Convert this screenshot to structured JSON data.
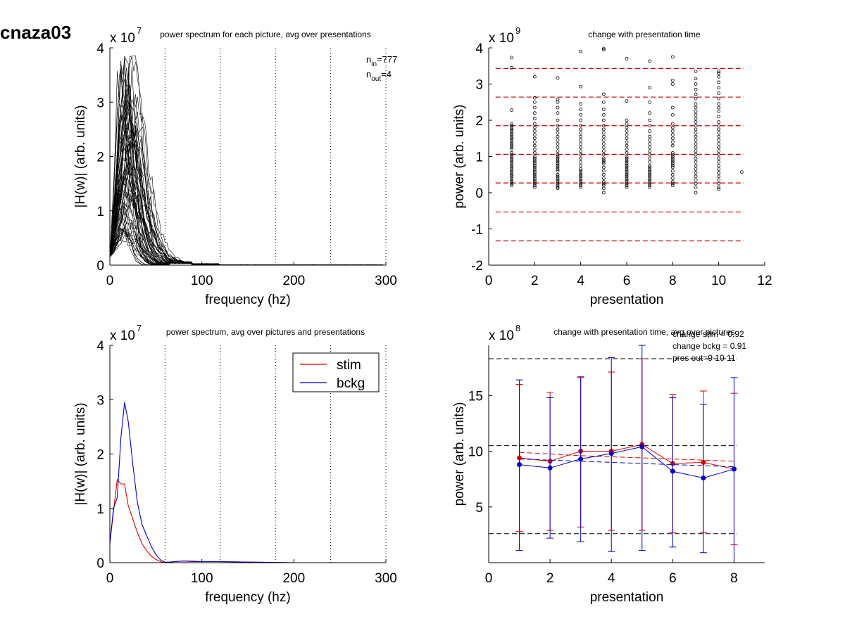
{
  "figure_title": "cnaza03",
  "chart_data": [
    {
      "type": "line",
      "title": "power spectrum for each picture, avg over presentations",
      "xlabel": "frequency (hz)",
      "ylabel": "|H(w)| (arb. units)",
      "exponent": "x 10",
      "exponent_power": "7",
      "xlim": [
        0,
        300
      ],
      "ylim": [
        0,
        4
      ],
      "xticks": [
        0,
        100,
        200,
        300
      ],
      "yticks": [
        0,
        1,
        2,
        3,
        4
      ],
      "vlines": [
        60,
        120,
        180,
        240,
        300
      ],
      "annotation_lines": [
        {
          "base": "n",
          "sub": "in",
          "rest": "=777"
        },
        {
          "base": "n",
          "sub": "out",
          "rest": "=4"
        }
      ],
      "many_traces": {
        "description_count": 60,
        "peak_freq_range": [
          8,
          25
        ],
        "peak_value_range": [
          0.5,
          3.8
        ],
        "x": [
          0,
          5,
          10,
          15,
          20,
          25,
          30,
          35,
          40,
          45,
          50,
          55,
          60,
          65,
          70,
          75,
          80,
          90,
          100,
          120,
          150,
          200,
          250,
          300
        ],
        "example_envelope_max": [
          0.5,
          2.5,
          3.5,
          3.8,
          3.4,
          2.9,
          2.4,
          1.8,
          1.0,
          0.5,
          0.2,
          0.06,
          0.02,
          0.03,
          0.05,
          0.05,
          0.04,
          0.03,
          0.03,
          0.02,
          0.02,
          0.01,
          0.01,
          0.0
        ]
      }
    },
    {
      "type": "scatter",
      "title": "change with presentation time",
      "xlabel": "presentation",
      "ylabel": "power (arb. units)",
      "exponent": "x 10",
      "exponent_power": "9",
      "xlim": [
        0,
        12
      ],
      "ylim": [
        -2,
        4
      ],
      "xticks": [
        0,
        2,
        4,
        6,
        8,
        10,
        12
      ],
      "yticks": [
        -2,
        -1,
        0,
        1,
        2,
        3,
        4
      ],
      "hlines": [
        3.43,
        2.64,
        1.85,
        1.06,
        0.27,
        -0.53,
        -1.33
      ],
      "hline_color": "#cc0000",
      "series": [
        {
          "x": 1,
          "y": [
            3.73,
            3.45,
            2.28,
            1.9,
            1.85,
            1.8,
            1.75,
            1.7,
            1.65,
            1.6,
            1.55,
            1.5,
            1.45,
            1.4,
            1.35,
            1.3,
            1.25,
            1.2,
            1.1,
            1.05,
            1.0,
            0.95,
            0.9,
            0.85,
            0.8,
            0.75,
            0.7,
            0.65,
            0.6,
            0.55,
            0.5,
            0.45,
            0.4,
            0.35,
            0.3,
            0.25,
            0.2
          ]
        },
        {
          "x": 2,
          "y": [
            3.2,
            2.62,
            2.5,
            2.35,
            2.2,
            2.05,
            1.9,
            1.8,
            1.7,
            1.6,
            1.5,
            1.4,
            1.3,
            1.2,
            1.1,
            1.0,
            0.95,
            0.9,
            0.85,
            0.8,
            0.75,
            0.7,
            0.65,
            0.6,
            0.55,
            0.5,
            0.45,
            0.4,
            0.35,
            0.3,
            0.25,
            0.2,
            0.15
          ]
        },
        {
          "x": 3,
          "y": [
            3.17,
            2.58,
            2.5,
            2.35,
            2.2,
            2.0,
            1.85,
            1.75,
            1.65,
            1.55,
            1.45,
            1.35,
            1.25,
            1.15,
            1.05,
            1.0,
            0.95,
            0.9,
            0.85,
            0.8,
            0.75,
            0.7,
            0.65,
            0.6,
            0.5,
            0.45,
            0.4,
            0.35,
            0.3,
            0.25,
            0.2,
            0.15,
            0.12
          ]
        },
        {
          "x": 4,
          "y": [
            3.9,
            2.93,
            2.45,
            2.3,
            2.15,
            2.0,
            1.85,
            1.75,
            1.65,
            1.55,
            1.45,
            1.35,
            1.25,
            1.15,
            1.05,
            0.95,
            0.85,
            0.75,
            0.65,
            0.6,
            0.55,
            0.5,
            0.45,
            0.4,
            0.35,
            0.3,
            0.25,
            0.2,
            0.15
          ]
        },
        {
          "x": 5,
          "y": [
            3.98,
            3.95,
            2.72,
            2.5,
            2.3,
            2.15,
            2.0,
            1.85,
            1.75,
            1.65,
            1.55,
            1.45,
            1.35,
            1.25,
            1.15,
            1.05,
            0.95,
            0.9,
            0.85,
            0.8,
            0.7,
            0.6,
            0.5,
            0.4,
            0.3,
            0.25,
            0.2,
            0.12,
            0.0
          ]
        },
        {
          "x": 6,
          "y": [
            3.7,
            2.53,
            2.0,
            1.9,
            1.8,
            1.7,
            1.6,
            1.5,
            1.4,
            1.3,
            1.2,
            1.1,
            1.0,
            0.95,
            0.9,
            0.85,
            0.8,
            0.75,
            0.7,
            0.65,
            0.6,
            0.55,
            0.5,
            0.45,
            0.4,
            0.35,
            0.3,
            0.25,
            0.2,
            0.15
          ]
        },
        {
          "x": 7,
          "y": [
            3.63,
            2.9,
            2.5,
            2.2,
            2.0,
            1.85,
            1.7,
            1.55,
            1.45,
            1.35,
            1.25,
            1.15,
            1.05,
            0.95,
            0.85,
            0.75,
            0.7,
            0.65,
            0.6,
            0.55,
            0.5,
            0.45,
            0.4,
            0.35,
            0.3,
            0.25,
            0.2,
            0.15
          ]
        },
        {
          "x": 8,
          "y": [
            3.75,
            3.1,
            3.0,
            2.35,
            2.15,
            1.9,
            1.8,
            1.7,
            1.6,
            1.5,
            1.4,
            1.3,
            1.1,
            1.05,
            1.0,
            0.95,
            0.9,
            0.85,
            0.8,
            0.75,
            0.7,
            0.6,
            0.5,
            0.4,
            0.3,
            0.25,
            0.2
          ]
        },
        {
          "x": 9,
          "y": [
            3.35,
            3.15,
            3.0,
            2.85,
            2.72,
            2.6,
            2.45,
            2.35,
            2.25,
            2.15,
            2.05,
            1.95,
            1.85,
            1.75,
            1.65,
            1.55,
            1.45,
            1.35,
            1.25,
            1.15,
            1.05,
            0.95,
            0.85,
            0.75,
            0.65,
            0.55,
            0.45,
            0.35,
            0.25,
            0.15,
            0.0
          ]
        },
        {
          "x": 10,
          "y": [
            3.35,
            3.3,
            3.2,
            3.05,
            2.9,
            2.75,
            2.6,
            2.45,
            2.35,
            2.25,
            2.1,
            1.95,
            1.85,
            1.75,
            1.65,
            1.55,
            1.45,
            1.35,
            1.25,
            1.15,
            1.05,
            0.95,
            0.85,
            0.75,
            0.65,
            0.55,
            0.45,
            0.35,
            0.25,
            0.15,
            0.1
          ]
        },
        {
          "x": 11,
          "y": [
            0.57
          ]
        }
      ]
    },
    {
      "type": "line",
      "title": "power spectrum, avg over pictures and presentations",
      "xlabel": "frequency (hz)",
      "ylabel": "|H(w)| (arb. units)",
      "exponent": "x 10",
      "exponent_power": "7",
      "xlim": [
        0,
        300
      ],
      "ylim": [
        0,
        4
      ],
      "xticks": [
        0,
        100,
        200,
        300
      ],
      "yticks": [
        0,
        1,
        2,
        3,
        4
      ],
      "vlines": [
        60,
        120,
        180,
        240,
        300
      ],
      "legend": {
        "position": "top-right"
      },
      "x": [
        0,
        4,
        8,
        12,
        16,
        20,
        25,
        30,
        35,
        40,
        45,
        50,
        55,
        60,
        65,
        70,
        80,
        90,
        100,
        120,
        150,
        200,
        250,
        300
      ],
      "series": [
        {
          "name": "stim",
          "color": "#dd0000",
          "values": [
            0.35,
            0.95,
            1.53,
            1.45,
            1.45,
            1.05,
            0.8,
            0.55,
            0.35,
            0.22,
            0.12,
            0.06,
            0.02,
            0.0,
            0.0,
            0.02,
            0.03,
            0.03,
            0.02,
            0.02,
            0.01,
            0.0,
            0.0,
            0.0
          ]
        },
        {
          "name": "bckg",
          "color": "#0000cc",
          "values": [
            0.35,
            1.0,
            1.2,
            2.3,
            2.95,
            2.6,
            1.8,
            1.1,
            0.7,
            0.5,
            0.3,
            0.15,
            0.05,
            0.01,
            0.01,
            0.02,
            0.03,
            0.02,
            0.02,
            0.02,
            0.01,
            0.0,
            0.0,
            0.0
          ]
        }
      ]
    },
    {
      "type": "line",
      "title": "change with presentation time, avg over pictures",
      "xlabel": "presentation",
      "ylabel": "power (arb. units)",
      "exponent": "x 10",
      "exponent_power": "8",
      "xlim": [
        0,
        9
      ],
      "ylim": [
        0,
        19.5
      ],
      "xticks": [
        0,
        2,
        4,
        6,
        8
      ],
      "yticks": [
        5,
        10,
        15
      ],
      "hlines": [
        18.3,
        10.5,
        2.6
      ],
      "annotation_lines": [
        "change stim = 0.92",
        "change bckg = 0.91",
        "pres out=9 10 11"
      ],
      "categories": [
        1,
        2,
        3,
        4,
        5,
        6,
        7,
        8
      ],
      "series": [
        {
          "name": "stim",
          "color": "#dd0000",
          "values": [
            9.4,
            9.1,
            10.0,
            10.0,
            10.6,
            8.9,
            9.0,
            8.4
          ],
          "err_low": [
            2.8,
            2.9,
            3.2,
            2.9,
            2.9,
            2.7,
            2.7,
            1.6
          ],
          "err_high": [
            16.0,
            15.3,
            16.7,
            17.1,
            18.3,
            15.1,
            15.4,
            15.2
          ],
          "trend": [
            9.9,
            9.75,
            9.6,
            9.5,
            9.4,
            9.3,
            9.2,
            9.1
          ]
        },
        {
          "name": "bckg",
          "color": "#0000cc",
          "values": [
            8.8,
            8.5,
            9.3,
            9.8,
            10.4,
            8.2,
            7.6,
            8.4
          ],
          "err_low": [
            1.1,
            2.2,
            1.9,
            1.0,
            1.1,
            1.4,
            0.9,
            0.0
          ],
          "err_high": [
            16.4,
            14.8,
            16.6,
            18.4,
            19.5,
            14.8,
            14.2,
            16.6
          ],
          "trend": [
            9.3,
            9.2,
            9.1,
            9.0,
            8.9,
            8.8,
            8.7,
            8.6
          ]
        }
      ]
    }
  ]
}
